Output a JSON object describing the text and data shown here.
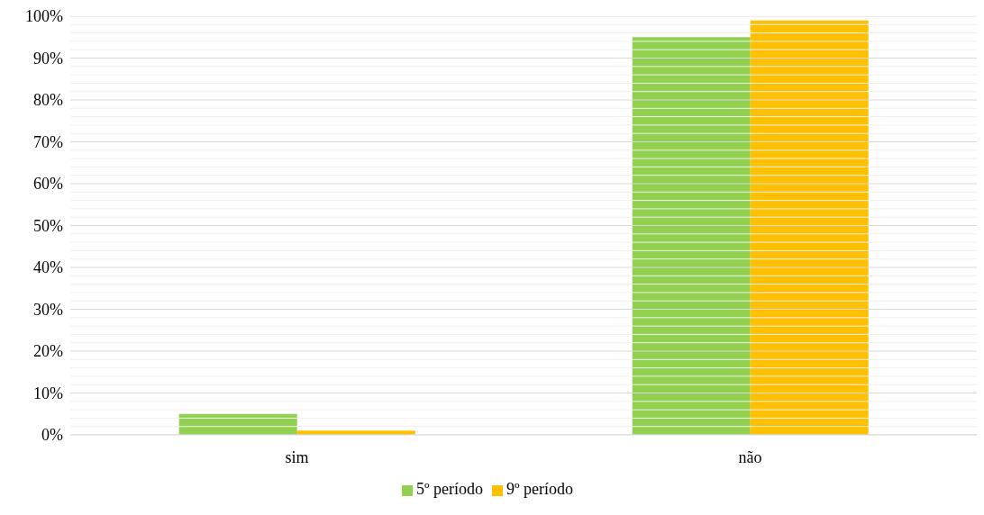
{
  "chart_data": {
    "type": "bar",
    "categories": [
      "sim",
      "não"
    ],
    "series": [
      {
        "name": "5º período",
        "color": "#92d050",
        "values": [
          5,
          95
        ]
      },
      {
        "name": "9º período",
        "color": "#ffc000",
        "values": [
          1,
          99
        ]
      }
    ],
    "ylim": [
      0,
      100
    ],
    "yticks": [
      {
        "value": 0,
        "label": "0%"
      },
      {
        "value": 2,
        "label": null
      },
      {
        "value": 4,
        "label": null
      },
      {
        "value": 6,
        "label": null
      },
      {
        "value": 8,
        "label": null
      },
      {
        "value": 10,
        "label": "10%"
      },
      {
        "value": 12,
        "label": null
      },
      {
        "value": 14,
        "label": null
      },
      {
        "value": 16,
        "label": null
      },
      {
        "value": 18,
        "label": null
      },
      {
        "value": 20,
        "label": "20%"
      },
      {
        "value": 22,
        "label": null
      },
      {
        "value": 24,
        "label": null
      },
      {
        "value": 26,
        "label": null
      },
      {
        "value": 28,
        "label": null
      },
      {
        "value": 30,
        "label": "30%"
      },
      {
        "value": 32,
        "label": null
      },
      {
        "value": 34,
        "label": null
      },
      {
        "value": 36,
        "label": null
      },
      {
        "value": 38,
        "label": null
      },
      {
        "value": 40,
        "label": "40%"
      },
      {
        "value": 42,
        "label": null
      },
      {
        "value": 44,
        "label": null
      },
      {
        "value": 46,
        "label": null
      },
      {
        "value": 48,
        "label": null
      },
      {
        "value": 50,
        "label": "50%"
      },
      {
        "value": 52,
        "label": null
      },
      {
        "value": 54,
        "label": null
      },
      {
        "value": 56,
        "label": null
      },
      {
        "value": 58,
        "label": null
      },
      {
        "value": 60,
        "label": "60%"
      },
      {
        "value": 62,
        "label": null
      },
      {
        "value": 64,
        "label": null
      },
      {
        "value": 66,
        "label": null
      },
      {
        "value": 68,
        "label": null
      },
      {
        "value": 70,
        "label": "70%"
      },
      {
        "value": 72,
        "label": null
      },
      {
        "value": 74,
        "label": null
      },
      {
        "value": 76,
        "label": null
      },
      {
        "value": 78,
        "label": null
      },
      {
        "value": 80,
        "label": "80%"
      },
      {
        "value": 82,
        "label": null
      },
      {
        "value": 84,
        "label": null
      },
      {
        "value": 86,
        "label": null
      },
      {
        "value": 88,
        "label": null
      },
      {
        "value": 90,
        "label": "90%"
      },
      {
        "value": 92,
        "label": null
      },
      {
        "value": 94,
        "label": null
      },
      {
        "value": 96,
        "label": null
      },
      {
        "value": 98,
        "label": null
      },
      {
        "value": 100,
        "label": "100%"
      }
    ],
    "grid": "y",
    "legend": "bottom"
  }
}
